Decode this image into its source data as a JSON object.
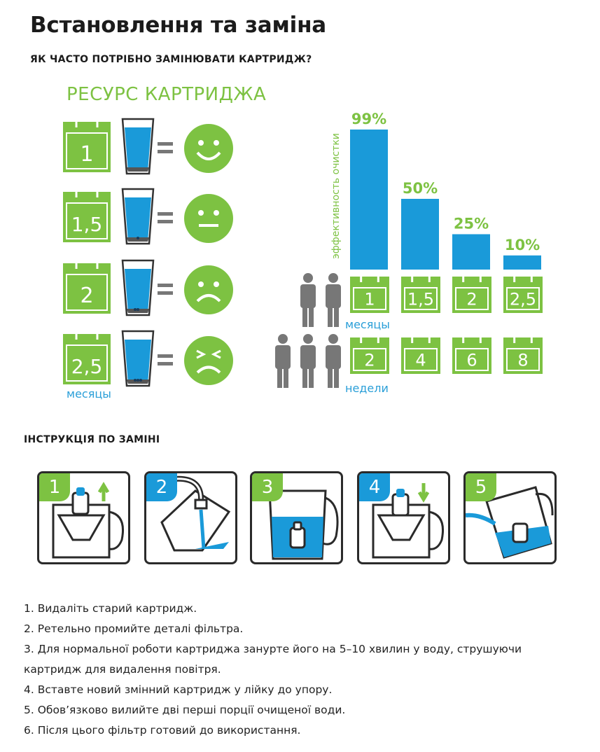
{
  "page": {
    "title": "Встановлення та заміна",
    "section_frequency": "ЯК ЧАСТО ПОТРІБНО ЗАМІНЮВАТИ КАРТРИДЖ?",
    "section_instructions": "ІНСТРУКЦІЯ ПО ЗАМІНІ"
  },
  "resource": {
    "title": "РЕСУРС КАРТРИДЖА",
    "months_label": "месяцы",
    "rows": [
      {
        "months": "1",
        "mood": "happy-face-icon"
      },
      {
        "months": "1,5",
        "mood": "neutral-face-icon"
      },
      {
        "months": "2",
        "mood": "sad-face-icon"
      },
      {
        "months": "2,5",
        "mood": "angry-face-icon"
      }
    ]
  },
  "efficiency": {
    "ylabel": "эффективность очистки",
    "months_label": "месяцы",
    "weeks_label": "недели",
    "months": [
      "1",
      "1,5",
      "2",
      "2,5"
    ],
    "weeks": [
      "2",
      "4",
      "6",
      "8"
    ],
    "colors": {
      "bar": "#1a9ad9",
      "green": "#7dc242",
      "people": "#777777"
    }
  },
  "chart_data": {
    "type": "bar",
    "categories": [
      "1",
      "1,5",
      "2",
      "2,5"
    ],
    "values": [
      99,
      50,
      25,
      10
    ],
    "value_labels": [
      "99%",
      "50%",
      "25%",
      "10%"
    ],
    "ylabel": "эффективность очистки",
    "xlabel": "месяцы",
    "secondary_x": [
      "2",
      "4",
      "6",
      "8"
    ],
    "secondary_xlabel": "недели",
    "ylim": [
      0,
      99
    ],
    "grid": false
  },
  "steps": [
    {
      "num": "1",
      "color": "#7dc242",
      "icon": "remove-cartridge-icon"
    },
    {
      "num": "2",
      "color": "#1a9ad9",
      "icon": "rinse-filter-icon"
    },
    {
      "num": "3",
      "color": "#7dc242",
      "icon": "soak-cartridge-icon"
    },
    {
      "num": "4",
      "color": "#1a9ad9",
      "icon": "insert-cartridge-icon"
    },
    {
      "num": "5",
      "color": "#7dc242",
      "icon": "pour-out-water-icon"
    }
  ],
  "instructions": [
    "1. Видаліть старий картридж.",
    "2. Ретельно промийте деталі фільтра.",
    "3. Для нормальної роботи картриджа занурте його на 5–10 хвилин у воду, струшуючи картридж для видалення повітря.",
    "4. Вставте новий змінний картридж у лійку до упору.",
    "5. Обов’язково вилийте дві перші порції очищеної води.",
    "6. Після цього фільтр готовий до використання."
  ]
}
